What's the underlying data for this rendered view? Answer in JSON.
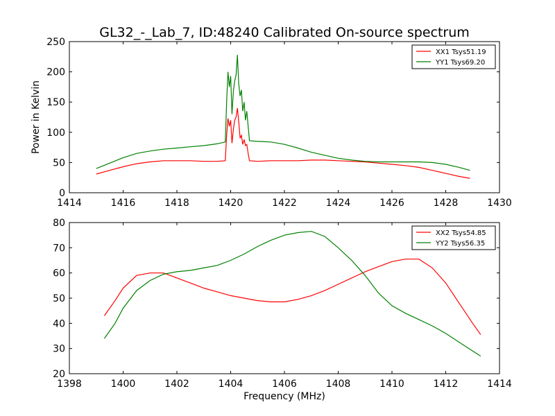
{
  "figure": {
    "title": "GL32_-_Lab_7, ID:48240 Calibrated On-source spectrum"
  },
  "chart_data": [
    {
      "type": "line",
      "xlim": [
        1414,
        1430
      ],
      "ylim": [
        0,
        250
      ],
      "xticks": [
        1414,
        1416,
        1418,
        1420,
        1422,
        1424,
        1426,
        1428,
        1430
      ],
      "yticks": [
        0,
        50,
        100,
        150,
        200,
        250
      ],
      "xlabel": "",
      "ylabel": "Power in Kelvin",
      "grid": false,
      "legend_position": "upper right",
      "series": [
        {
          "name": "XX1 Tsys51.19",
          "color": "#ff0000",
          "x": [
            1415.0,
            1415.5,
            1416.0,
            1416.5,
            1417.0,
            1417.5,
            1418.0,
            1418.5,
            1419.0,
            1419.5,
            1419.8,
            1419.85,
            1419.9,
            1419.95,
            1420.0,
            1420.05,
            1420.1,
            1420.15,
            1420.2,
            1420.25,
            1420.3,
            1420.35,
            1420.4,
            1420.45,
            1420.5,
            1420.55,
            1420.6,
            1420.65,
            1420.7,
            1421.0,
            1421.5,
            1422.0,
            1422.5,
            1423.0,
            1423.5,
            1424.0,
            1424.5,
            1425.0,
            1425.5,
            1426.0,
            1426.5,
            1427.0,
            1427.5,
            1428.0,
            1428.5,
            1428.9
          ],
          "y": [
            31,
            37,
            43,
            48,
            51,
            53,
            53,
            53,
            52,
            52,
            53,
            95,
            123,
            110,
            120,
            82,
            105,
            120,
            125,
            140,
            118,
            90,
            95,
            80,
            88,
            78,
            80,
            65,
            53,
            52,
            53,
            53,
            53,
            54,
            54,
            53,
            52,
            51,
            49,
            47,
            45,
            42,
            37,
            32,
            27,
            24
          ]
        },
        {
          "name": "YY1 Tsys69.20",
          "color": "#008000",
          "x": [
            1415.0,
            1415.5,
            1416.0,
            1416.5,
            1417.0,
            1417.5,
            1418.0,
            1418.5,
            1419.0,
            1419.5,
            1419.8,
            1419.85,
            1419.9,
            1419.95,
            1420.0,
            1420.05,
            1420.1,
            1420.15,
            1420.2,
            1420.25,
            1420.3,
            1420.35,
            1420.4,
            1420.45,
            1420.5,
            1420.55,
            1420.6,
            1420.65,
            1420.7,
            1421.0,
            1421.5,
            1422.0,
            1422.5,
            1423.0,
            1423.5,
            1424.0,
            1424.5,
            1425.0,
            1425.5,
            1426.0,
            1426.5,
            1427.0,
            1427.5,
            1428.0,
            1428.5,
            1428.9
          ],
          "y": [
            40,
            49,
            58,
            65,
            69,
            72,
            74,
            76,
            78,
            81,
            84,
            150,
            200,
            175,
            193,
            130,
            168,
            185,
            195,
            228,
            180,
            160,
            170,
            135,
            150,
            120,
            135,
            110,
            86,
            85,
            84,
            80,
            74,
            67,
            62,
            57,
            54,
            52,
            51,
            51,
            51,
            51,
            50,
            47,
            42,
            37
          ]
        }
      ]
    },
    {
      "type": "line",
      "xlim": [
        1398,
        1414
      ],
      "ylim": [
        20,
        80
      ],
      "xticks": [
        1398,
        1400,
        1402,
        1404,
        1406,
        1408,
        1410,
        1412,
        1414
      ],
      "yticks": [
        20,
        30,
        40,
        50,
        60,
        70,
        80
      ],
      "xlabel": "Frequency (MHz)",
      "ylabel": "",
      "grid": false,
      "legend_position": "upper right",
      "series": [
        {
          "name": "XX2 Tsys54.85",
          "color": "#ff0000",
          "x": [
            1399.3,
            1399.7,
            1400.0,
            1400.5,
            1401.0,
            1401.5,
            1402.0,
            1402.5,
            1403.0,
            1403.5,
            1404.0,
            1404.5,
            1405.0,
            1405.5,
            1406.0,
            1406.5,
            1407.0,
            1407.5,
            1408.0,
            1408.5,
            1409.0,
            1409.5,
            1410.0,
            1410.5,
            1411.0,
            1411.5,
            1412.0,
            1412.5,
            1413.0,
            1413.3
          ],
          "y": [
            43,
            49,
            54,
            59,
            60,
            60,
            58,
            56,
            54,
            52.5,
            51,
            50,
            49,
            48.5,
            48.5,
            49.5,
            51,
            53,
            55.5,
            58,
            60.5,
            62.5,
            64.5,
            65.5,
            65.5,
            62,
            56,
            48,
            40,
            35.5
          ]
        },
        {
          "name": "YY2 Tsys56.35",
          "color": "#008000",
          "x": [
            1399.3,
            1399.7,
            1400.0,
            1400.5,
            1401.0,
            1401.5,
            1402.0,
            1402.5,
            1403.0,
            1403.5,
            1404.0,
            1404.5,
            1405.0,
            1405.5,
            1406.0,
            1406.5,
            1407.0,
            1407.5,
            1408.0,
            1408.5,
            1409.0,
            1409.5,
            1410.0,
            1410.5,
            1411.0,
            1411.5,
            1412.0,
            1412.5,
            1413.0,
            1413.3
          ],
          "y": [
            34,
            40,
            46,
            53,
            57,
            59.5,
            60.5,
            61,
            62,
            63,
            65,
            67.5,
            70.5,
            73,
            75,
            76,
            76.5,
            74.5,
            70,
            65,
            59,
            52,
            47,
            44,
            41.5,
            39,
            36,
            32.5,
            29,
            27
          ]
        }
      ]
    }
  ]
}
